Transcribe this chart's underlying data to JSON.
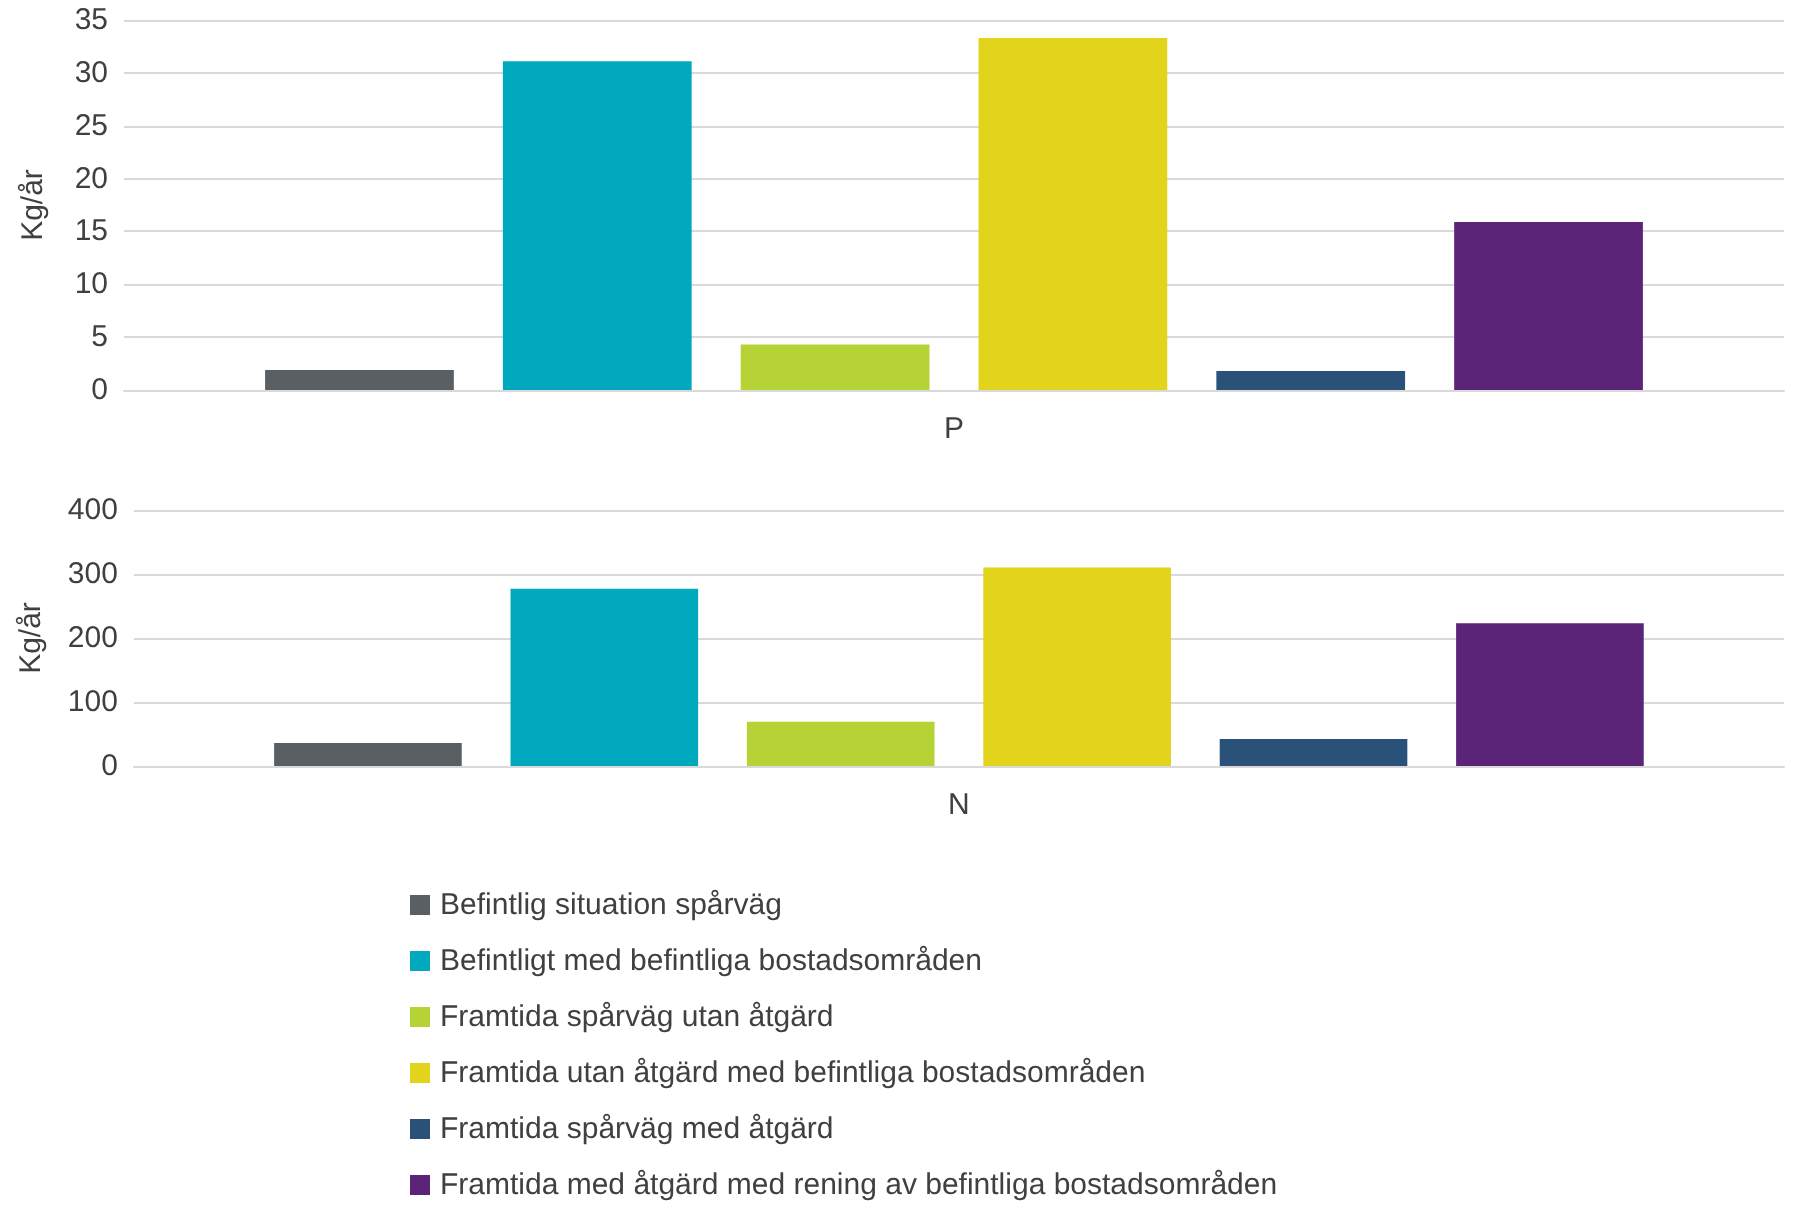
{
  "chart_data": [
    {
      "type": "bar",
      "ylabel": "Kg/år",
      "categories": [
        "P"
      ],
      "ylim": [
        0,
        35
      ],
      "yticks": [
        0,
        5,
        10,
        15,
        20,
        25,
        30,
        35
      ],
      "grid": "y",
      "series": [
        {
          "color": "#595f63",
          "values": [
            1.9
          ]
        },
        {
          "color": "#00a9bd",
          "values": [
            31.1
          ]
        },
        {
          "color": "#b5d334",
          "values": [
            4.3
          ]
        },
        {
          "color": "#e1d41a",
          "values": [
            33.3
          ]
        },
        {
          "color": "#2a5278",
          "values": [
            1.8
          ]
        },
        {
          "color": "#5c2479",
          "values": [
            15.9
          ]
        }
      ]
    },
    {
      "type": "bar",
      "ylabel": "Kg/år",
      "categories": [
        "N"
      ],
      "ylim": [
        0,
        400
      ],
      "yticks": [
        0,
        100,
        200,
        300,
        400
      ],
      "grid": "y",
      "legend": "bottom",
      "series": [
        {
          "name": "Befintlig situation spårväg",
          "color": "#595f63",
          "values": [
            36
          ]
        },
        {
          "name": "Befintligt med befintliga bostadsområden",
          "color": "#00a9bd",
          "values": [
            277
          ]
        },
        {
          "name": "Framtida spårväg utan åtgärd",
          "color": "#b5d334",
          "values": [
            69
          ]
        },
        {
          "name": "Framtida utan åtgärd med befintliga bostadsområden",
          "color": "#e1d41a",
          "values": [
            310
          ]
        },
        {
          "name": "Framtida spårväg med åtgärd",
          "color": "#2a5278",
          "values": [
            42
          ]
        },
        {
          "name": "Framtida med åtgärd med rening av befintliga bostadsområden",
          "color": "#5c2479",
          "values": [
            223
          ]
        }
      ]
    }
  ]
}
